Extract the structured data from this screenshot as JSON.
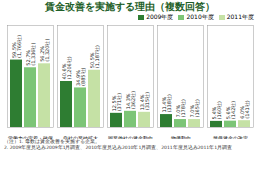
{
  "chart_data": {
    "type": "bar",
    "title": "賃金改善を実施する理由（複数回答）",
    "categories": [
      "労働力の定着・確保",
      "自社の業績拡大",
      "同業他社の賃金動向",
      "物価動向",
      "最低賃金の改定"
    ],
    "series": [
      {
        "name": "2009年度",
        "color": "#2e7d32",
        "values": [
          59.5,
          40.6,
          12.5,
          11.4,
          5.4
        ],
        "value_labels": [
          "59.5%\n(1,766社)",
          "40.6%\n(1,206社)",
          "12.5%\n(371社)",
          "11.4%\n(338社)",
          "5.4%\n(160社)"
        ]
      },
      {
        "name": "2010年度",
        "color": "#7cc576",
        "values": [
          52.7,
          34.9,
          14.3,
          7.0,
          5.6
        ],
        "value_labels": [
          "52.7%\n(1,336社)",
          "34.9%\n(885社)",
          "14.3%\n(362社)",
          "7.0%\n(178社)",
          "5.6%\n(142社)"
        ]
      },
      {
        "name": "2011年度",
        "color": "#c5e1a5",
        "values": [
          56.2,
          50.5,
          13.4,
          7.0,
          6.0
        ],
        "value_labels": [
          "56.2%\n(1,320社)",
          "50.5%\n(1,187社)",
          "13.4%\n(315社)",
          "7.0%\n(165社)",
          "6.0%\n(141社)"
        ]
      }
    ],
    "ylim": [
      0,
      90
    ],
    "yticks": [],
    "tick_labels": "x",
    "grid": false,
    "data_labels": true,
    "legend": "top-right",
    "annotations": [
      "（注）1. 母数は賃金改善を実施する企業。",
      "2. 2009年度見込み2009年1月調査、2010年度見込み2010年1月調査、2011年度見込み2011年1月調査"
    ]
  }
}
